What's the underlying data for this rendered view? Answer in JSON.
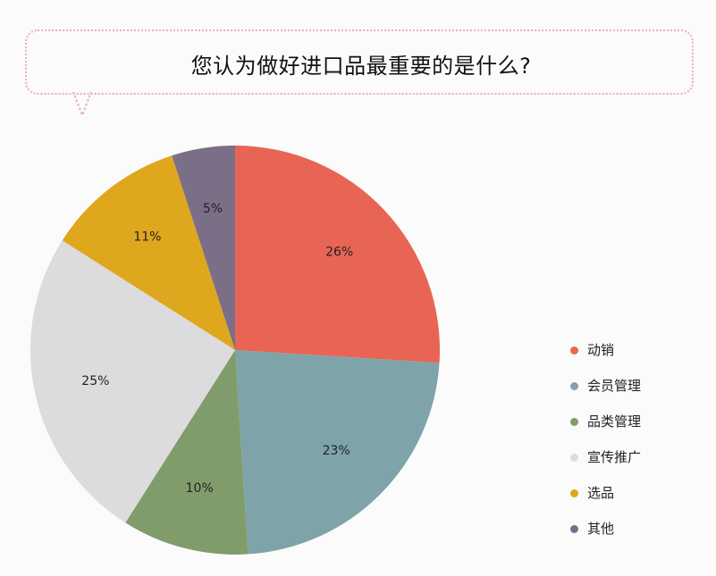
{
  "title": "您认为做好进口品最重要的是什么?",
  "chart_data": {
    "type": "pie",
    "title": "您认为做好进口品最重要的是什么?",
    "categories": [
      "动销",
      "会员管理",
      "品类管理",
      "宣传推广",
      "选品",
      "其他"
    ],
    "values": [
      26,
      23,
      10,
      25,
      11,
      5
    ],
    "labels": [
      "26%",
      "23%",
      "10%",
      "25%",
      "11%",
      "5%"
    ],
    "colors": [
      "#e86555",
      "#7ea4aa",
      "#819c6b",
      "#dcdbdd",
      "#dfa71d",
      "#7b6f88"
    ],
    "legend_position": "right",
    "start_angle": "top",
    "direction": "clockwise"
  }
}
